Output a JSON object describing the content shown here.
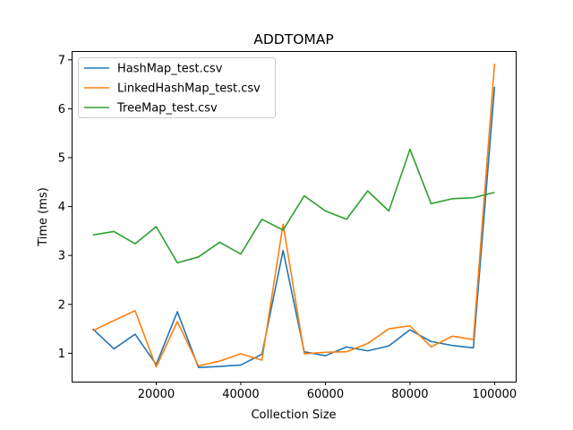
{
  "chart_data": {
    "type": "line",
    "title": "ADDTOMAP",
    "xlabel": "Collection Size",
    "ylabel": "Time (ms)",
    "xlim": [
      0,
      105000
    ],
    "ylim": [
      0.42,
      7.18
    ],
    "xticks": [
      20000,
      40000,
      60000,
      80000,
      100000
    ],
    "yticks": [
      1,
      2,
      3,
      4,
      5,
      6,
      7
    ],
    "grid": false,
    "legend_position": "top-left",
    "x": [
      5000,
      10000,
      15000,
      20000,
      25000,
      30000,
      35000,
      40000,
      45000,
      50000,
      55000,
      60000,
      65000,
      70000,
      75000,
      80000,
      85000,
      90000,
      95000,
      100000
    ],
    "series": [
      {
        "name": "HashMap_test.csv",
        "color": "#1f77b4",
        "values": [
          1.5,
          1.09,
          1.39,
          0.77,
          1.85,
          0.71,
          0.73,
          0.76,
          0.98,
          3.1,
          1.03,
          0.95,
          1.13,
          1.05,
          1.15,
          1.48,
          1.24,
          1.16,
          1.11,
          6.45
        ]
      },
      {
        "name": "LinkedHashMap_test.csv",
        "color": "#ff7f0e",
        "values": [
          1.46,
          1.67,
          1.87,
          0.72,
          1.65,
          0.74,
          0.84,
          0.99,
          0.86,
          3.64,
          0.99,
          1.02,
          1.03,
          1.2,
          1.5,
          1.56,
          1.13,
          1.35,
          1.28,
          6.92
        ]
      },
      {
        "name": "TreeMap_test.csv",
        "color": "#2ca02c",
        "values": [
          3.42,
          3.49,
          3.24,
          3.59,
          2.85,
          2.97,
          3.27,
          3.03,
          3.74,
          3.52,
          4.22,
          3.91,
          3.74,
          4.32,
          3.91,
          5.17,
          4.06,
          4.16,
          4.18,
          4.29
        ]
      }
    ]
  }
}
